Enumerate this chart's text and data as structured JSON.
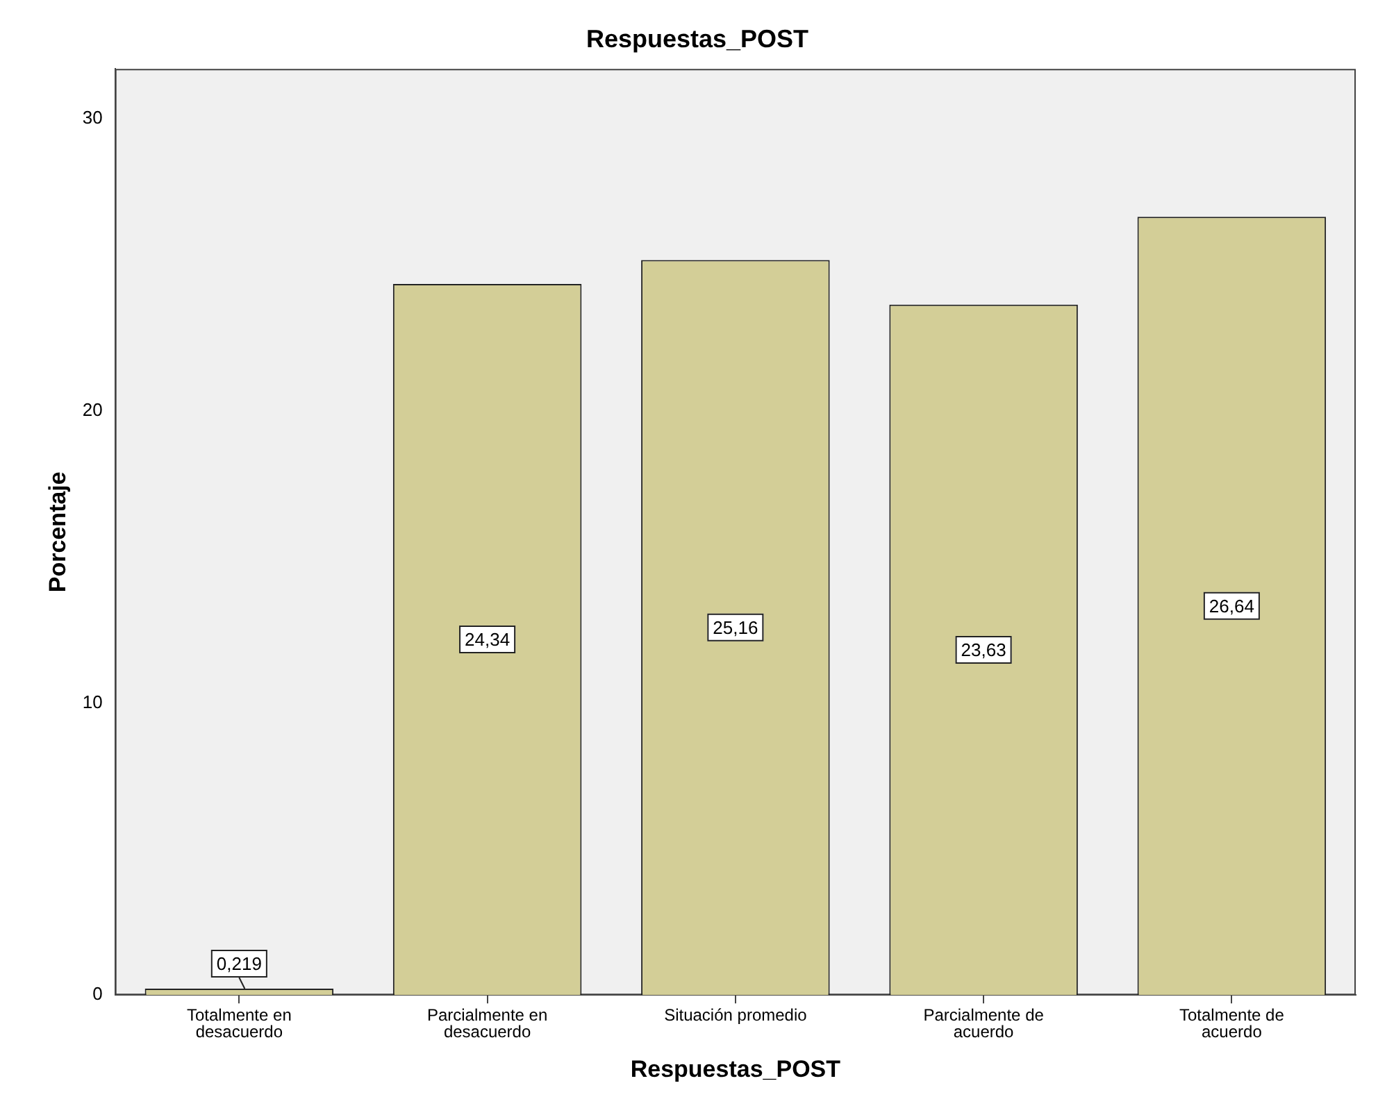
{
  "chart_data": {
    "type": "bar",
    "title": "Respuestas_POST",
    "xlabel": "Respuestas_POST",
    "ylabel": "Porcentaje",
    "categories": [
      "Totalmente en desacuerdo",
      "Parcialmente en desacuerdo",
      "Situación promedio",
      "Parcialmente de acuerdo",
      "Totalmente de acuerdo"
    ],
    "values": [
      0.219,
      24.34,
      25.16,
      23.63,
      26.64
    ],
    "value_labels": [
      "0,219",
      "24,34",
      "25,16",
      "23,63",
      "26,64"
    ],
    "color": "#d3ce97",
    "ylim": [
      0,
      31.7
    ],
    "yticks": [
      0,
      10,
      20,
      30
    ],
    "grid": false,
    "legend": false
  }
}
